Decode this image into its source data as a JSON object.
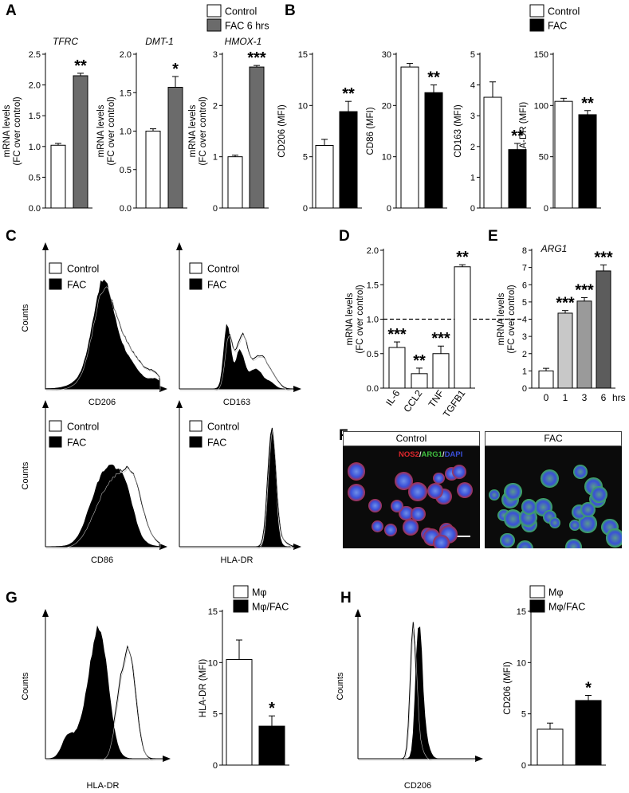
{
  "panel_letters": [
    "A",
    "B",
    "C",
    "D",
    "E",
    "F",
    "G",
    "H"
  ],
  "legends": {
    "A": [
      "Control",
      "FAC 6 hrs"
    ],
    "B": [
      "Control",
      "FAC"
    ],
    "C": [
      "Control",
      "FAC"
    ],
    "G": [
      "Mφ",
      "Mφ/FAC"
    ],
    "H": [
      "Mφ",
      "Mφ/FAC"
    ]
  },
  "colors": {
    "control_fill": "#ffffff",
    "fac_gray": "#6b6b6b",
    "fac_black": "#000000",
    "arg1_1h": "#c8c8c8",
    "arg1_3h": "#9a9a9a",
    "arg1_6h": "#5c5c5c"
  },
  "chart_data": [
    {
      "id": "A1",
      "type": "bar",
      "title": "TFRC",
      "ylabel": "mRNA levels (FC over control)",
      "ylim": [
        0,
        2.5
      ],
      "yticks": [
        "0.0",
        "0.5",
        "1.0",
        "1.5",
        "2.0",
        "2.5"
      ],
      "ytick_values": [
        0,
        0.5,
        1.0,
        1.5,
        2.0,
        2.5
      ],
      "categories": [
        "Control",
        "FAC 6 hrs"
      ],
      "values": [
        1.02,
        2.15
      ],
      "errors": [
        0.03,
        0.04
      ],
      "annotations": [
        "",
        "**"
      ]
    },
    {
      "id": "A2",
      "type": "bar",
      "title": "DMT-1",
      "ylabel": "mRNA levels (FC over control)",
      "ylim": [
        0,
        2.0
      ],
      "yticks": [
        "0.0",
        "0.5",
        "1.0",
        "1.5",
        "2.0"
      ],
      "ytick_values": [
        0,
        0.5,
        1.0,
        1.5,
        2.0
      ],
      "categories": [
        "Control",
        "FAC 6 hrs"
      ],
      "values": [
        1.0,
        1.57
      ],
      "errors": [
        0.03,
        0.14
      ],
      "annotations": [
        "",
        "*"
      ]
    },
    {
      "id": "A3",
      "type": "bar",
      "title": "HMOX-1",
      "ylabel": "mRNA levels (FC over control)",
      "ylim": [
        0,
        3
      ],
      "yticks": [
        "0",
        "1",
        "2",
        "3"
      ],
      "ytick_values": [
        0,
        1,
        2,
        3
      ],
      "categories": [
        "Control",
        "FAC 6 hrs"
      ],
      "values": [
        1.0,
        2.75
      ],
      "errors": [
        0.03,
        0.03
      ],
      "annotations": [
        "",
        "***"
      ]
    },
    {
      "id": "B1",
      "type": "bar",
      "title": "",
      "ylabel": "CD206 (MFI)",
      "ylim": [
        0,
        15
      ],
      "yticks": [
        "0",
        "5",
        "10",
        "15"
      ],
      "ytick_values": [
        0,
        5,
        10,
        15
      ],
      "categories": [
        "Control",
        "FAC"
      ],
      "values": [
        6.1,
        9.4
      ],
      "errors": [
        0.6,
        1.0
      ],
      "annotations": [
        "",
        "**"
      ]
    },
    {
      "id": "B2",
      "type": "bar",
      "title": "",
      "ylabel": "CD86 (MFI)",
      "ylim": [
        0,
        30
      ],
      "yticks": [
        "0",
        "10",
        "20",
        "30"
      ],
      "ytick_values": [
        0,
        10,
        20,
        30
      ],
      "categories": [
        "Control",
        "FAC"
      ],
      "values": [
        27.5,
        22.5
      ],
      "errors": [
        0.7,
        1.5
      ],
      "annotations": [
        "",
        "**"
      ]
    },
    {
      "id": "B3",
      "type": "bar",
      "title": "",
      "ylabel": "CD163 (MFI)",
      "ylim": [
        0,
        5
      ],
      "yticks": [
        "0",
        "1",
        "2",
        "3",
        "4",
        "5"
      ],
      "ytick_values": [
        0,
        1,
        2,
        3,
        4,
        5
      ],
      "categories": [
        "Control",
        "FAC"
      ],
      "values": [
        3.6,
        1.9
      ],
      "errors": [
        0.5,
        0.2
      ],
      "annotations": [
        "",
        "**"
      ]
    },
    {
      "id": "B4",
      "type": "bar",
      "title": "",
      "ylabel": "HLA-DR (MFI)",
      "ylim": [
        0,
        150
      ],
      "yticks": [
        "0",
        "50",
        "100",
        "150"
      ],
      "ytick_values": [
        0,
        50,
        100,
        150
      ],
      "categories": [
        "Control",
        "FAC"
      ],
      "values": [
        104,
        91
      ],
      "errors": [
        3,
        4
      ],
      "annotations": [
        "",
        "**"
      ]
    },
    {
      "id": "D",
      "type": "bar",
      "title": "",
      "ylabel": "mRNA levels (FC over control)",
      "ylim": [
        0,
        2.0
      ],
      "yticks": [
        "0.0",
        "0.5",
        "1.0",
        "1.5",
        "2.0"
      ],
      "ytick_values": [
        0,
        0.5,
        1.0,
        1.5,
        2.0
      ],
      "categories": [
        "IL-6",
        "CCL2",
        "TNF",
        "TGFB1"
      ],
      "values": [
        0.59,
        0.21,
        0.5,
        1.76
      ],
      "errors": [
        0.08,
        0.08,
        0.11,
        0.03
      ],
      "annotations": [
        "***",
        "**",
        "***",
        "**"
      ],
      "reference_line": 1.0
    },
    {
      "id": "E",
      "type": "bar",
      "title": "ARG1",
      "ylabel": "mRNA levels (FC over control)",
      "ylim": [
        0,
        8
      ],
      "yticks": [
        "0",
        "1",
        "2",
        "3",
        "4",
        "5",
        "6",
        "7",
        "8"
      ],
      "ytick_values": [
        0,
        1,
        2,
        3,
        4,
        5,
        6,
        7,
        8
      ],
      "categories": [
        "0",
        "1",
        "3",
        "6"
      ],
      "x_unit": "hrs",
      "values": [
        1.0,
        4.35,
        5.05,
        6.8
      ],
      "errors": [
        0.15,
        0.15,
        0.2,
        0.35
      ],
      "annotations": [
        "",
        "***",
        "***",
        "***"
      ]
    },
    {
      "id": "G_bar",
      "type": "bar",
      "title": "",
      "ylabel": "HLA-DR (MFI)",
      "ylim": [
        0,
        15
      ],
      "yticks": [
        "0",
        "5",
        "10",
        "15"
      ],
      "ytick_values": [
        0,
        5,
        10,
        15
      ],
      "categories": [
        "Mφ",
        "Mφ/FAC"
      ],
      "values": [
        10.3,
        3.8
      ],
      "errors": [
        1.9,
        1.0
      ],
      "annotations": [
        "",
        "*"
      ]
    },
    {
      "id": "H_bar",
      "type": "bar",
      "title": "",
      "ylabel": "CD206 (MFI)",
      "ylim": [
        0,
        15
      ],
      "yticks": [
        "0",
        "5",
        "10",
        "15"
      ],
      "ytick_values": [
        0,
        5,
        10,
        15
      ],
      "categories": [
        "Mφ",
        "Mφ/FAC"
      ],
      "values": [
        3.5,
        6.3
      ],
      "errors": [
        0.6,
        0.5
      ],
      "annotations": [
        "",
        "*"
      ]
    }
  ],
  "histograms": [
    {
      "id": "C1",
      "xlabel": "CD206",
      "ylabel": "Counts",
      "legend": [
        "Control",
        "FAC"
      ]
    },
    {
      "id": "C2",
      "xlabel": "CD163",
      "ylabel": "",
      "legend": [
        "Control",
        "FAC"
      ]
    },
    {
      "id": "C3",
      "xlabel": "CD86",
      "ylabel": "Counts",
      "legend": [
        "Control",
        "FAC"
      ]
    },
    {
      "id": "C4",
      "xlabel": "HLA-DR",
      "ylabel": "",
      "legend": [
        "Control",
        "FAC"
      ]
    },
    {
      "id": "G_hist",
      "xlabel": "HLA-DR",
      "ylabel": "Counts",
      "legend": []
    },
    {
      "id": "H_hist",
      "xlabel": "CD206",
      "ylabel": "Counts",
      "legend": []
    }
  ],
  "microscopy": {
    "headers": [
      "Control",
      "FAC"
    ],
    "stain_label": {
      "nos2": "NOS2",
      "sep1": "/",
      "arg1": "ARG1",
      "sep2": "/",
      "dapi": "DAPI"
    },
    "stain_colors": {
      "nos2": "#e0262c",
      "arg1": "#3fbf3f",
      "dapi": "#3a4fd8"
    }
  }
}
